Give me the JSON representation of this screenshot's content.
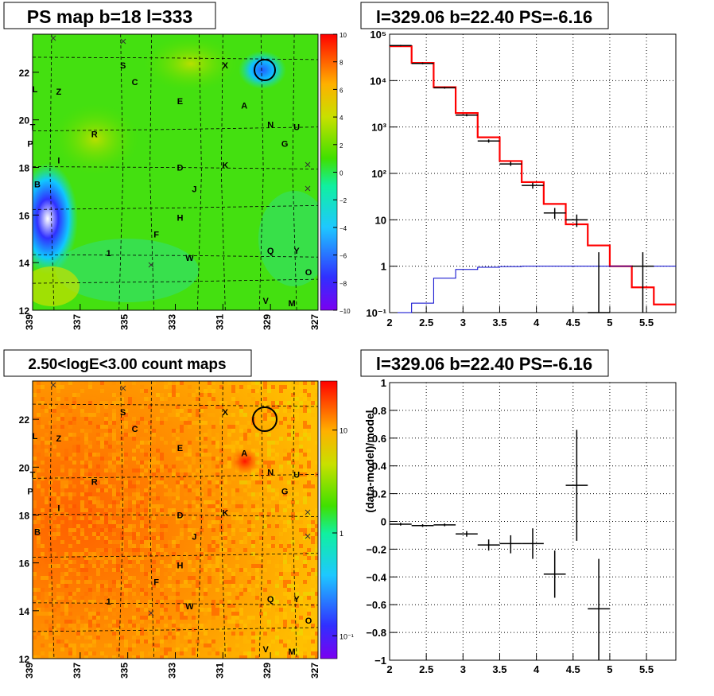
{
  "chart_data": [
    {
      "type": "heatmap",
      "title": "PS map b=18 l=333",
      "xlim": [
        339,
        327
      ],
      "ylim": [
        12,
        23.6
      ],
      "x_ticks": [
        "339",
        "337",
        "335",
        "333",
        "331",
        "329",
        "327"
      ],
      "y_ticks": [
        "12",
        "14",
        "16",
        "18",
        "20",
        "22"
      ],
      "colorbar": {
        "scale": "linear",
        "min": -10,
        "max": 10,
        "ticks": [
          "10",
          "8",
          "6",
          "4",
          "2",
          "0",
          "−2",
          "−4",
          "−6",
          "−8",
          "−10"
        ]
      },
      "source_labels": [
        {
          "text": "S",
          "l": 335.2,
          "b": 22.3
        },
        {
          "text": "X",
          "l": 330.9,
          "b": 22.3
        },
        {
          "text": "C",
          "l": 334.7,
          "b": 21.6
        },
        {
          "text": "L",
          "l": 338.9,
          "b": 21.3
        },
        {
          "text": "Z",
          "l": 337.9,
          "b": 21.2
        },
        {
          "text": "E",
          "l": 332.8,
          "b": 20.8
        },
        {
          "text": "A",
          "l": 330.1,
          "b": 20.6
        },
        {
          "text": "T",
          "l": 339.0,
          "b": 19.7
        },
        {
          "text": "R",
          "l": 336.4,
          "b": 19.4
        },
        {
          "text": "N",
          "l": 329.0,
          "b": 19.8
        },
        {
          "text": "U",
          "l": 327.9,
          "b": 19.7
        },
        {
          "text": "G",
          "l": 328.4,
          "b": 19.0
        },
        {
          "text": "P",
          "l": 339.1,
          "b": 19.0
        },
        {
          "text": "I",
          "l": 337.9,
          "b": 18.3
        },
        {
          "text": "D",
          "l": 332.8,
          "b": 18.0
        },
        {
          "text": "K",
          "l": 330.9,
          "b": 18.1
        },
        {
          "text": "B",
          "l": 338.8,
          "b": 17.3
        },
        {
          "text": "J",
          "l": 332.2,
          "b": 17.1
        },
        {
          "text": "H",
          "l": 332.8,
          "b": 15.9
        },
        {
          "text": "F",
          "l": 333.8,
          "b": 15.2
        },
        {
          "text": "1",
          "l": 335.8,
          "b": 14.4
        },
        {
          "text": "W",
          "l": 332.4,
          "b": 14.2
        },
        {
          "text": "Q",
          "l": 329.0,
          "b": 14.5
        },
        {
          "text": "Y",
          "l": 327.9,
          "b": 14.5
        },
        {
          "text": "O",
          "l": 327.4,
          "b": 13.6
        },
        {
          "text": "V",
          "l": 329.2,
          "b": 12.4
        },
        {
          "text": "M",
          "l": 328.1,
          "b": 12.3
        }
      ]
    },
    {
      "type": "line",
      "title": "l=329.06 b=22.40 PS=-6.16",
      "xlim": [
        2,
        5.9
      ],
      "ylim": [
        0.1,
        100000
      ],
      "y_scale": "log",
      "x_ticks": [
        "2",
        "2.5",
        "3",
        "3.5",
        "4",
        "4.5",
        "5",
        "5.5"
      ],
      "y_ticks": [
        "10⁻¹",
        "1",
        "10",
        "10²",
        "10³",
        "10⁴",
        "10⁵"
      ],
      "grid": true,
      "bin_edges": [
        2.0,
        2.3,
        2.6,
        2.9,
        3.2,
        3.5,
        3.8,
        4.1,
        4.4,
        4.7,
        5.0,
        5.3,
        5.6,
        5.9
      ],
      "series": [
        {
          "color": "#ff0000",
          "style": "step",
          "values": [
            55000,
            24000,
            7200,
            2000,
            600,
            185,
            65,
            22,
            8,
            2.8,
            1.0,
            0.35,
            0.15
          ]
        },
        {
          "color": "#0000cc",
          "style": "step",
          "values": [
            0.1,
            0.16,
            0.55,
            0.85,
            0.95,
            0.98,
            1.0,
            1.0,
            1.0,
            1.0,
            1.0,
            1.0,
            1.0
          ]
        },
        {
          "color": "#000000",
          "style": "errorbar",
          "points": [
            {
              "x": 2.15,
              "y": 57000,
              "lo": 55000,
              "hi": 59000
            },
            {
              "x": 2.45,
              "y": 23500,
              "lo": 22500,
              "hi": 24500
            },
            {
              "x": 2.75,
              "y": 7000,
              "lo": 6700,
              "hi": 7300
            },
            {
              "x": 3.05,
              "y": 1800,
              "lo": 1700,
              "hi": 1900
            },
            {
              "x": 3.35,
              "y": 500,
              "lo": 460,
              "hi": 540
            },
            {
              "x": 3.65,
              "y": 160,
              "lo": 145,
              "hi": 178
            },
            {
              "x": 3.95,
              "y": 55,
              "lo": 47,
              "hi": 63
            },
            {
              "x": 4.25,
              "y": 14,
              "lo": 10.5,
              "hi": 18
            },
            {
              "x": 4.55,
              "y": 10,
              "lo": 7,
              "hi": 13
            },
            {
              "x": 4.85,
              "y": 0.1,
              "lo": 0.1,
              "hi": 2.0
            },
            {
              "x": 5.45,
              "y": 1.0,
              "lo": 0.1,
              "hi": 2.0
            }
          ]
        }
      ]
    },
    {
      "type": "heatmap",
      "title": "2.50<logE<3.00 count maps",
      "xlim": [
        339,
        327
      ],
      "ylim": [
        12,
        23.6
      ],
      "x_ticks": [
        "339",
        "337",
        "335",
        "333",
        "331",
        "329",
        "327"
      ],
      "y_ticks": [
        "12",
        "14",
        "16",
        "18",
        "20",
        "22"
      ],
      "colorbar": {
        "scale": "log",
        "min": 0.06,
        "max": 30,
        "ticks": [
          "10",
          "1",
          "10⁻¹"
        ]
      }
    },
    {
      "type": "scatter",
      "title": "l=329.06 b=22.40 PS=-6.16",
      "ylabel": "(data-model)/model",
      "xlim": [
        2,
        5.9
      ],
      "ylim": [
        -1,
        1
      ],
      "x_ticks": [
        "2",
        "2.5",
        "3",
        "3.5",
        "4",
        "4.5",
        "5",
        "5.5"
      ],
      "y_ticks": [
        "1",
        "0.8",
        "0.6",
        "0.4",
        "0.2",
        "0",
        "−0.2",
        "−0.4",
        "−0.6",
        "−0.8",
        "−1"
      ],
      "grid": true,
      "points": [
        {
          "x": 2.15,
          "y": -0.02,
          "lo": -0.03,
          "hi": -0.01
        },
        {
          "x": 2.45,
          "y": -0.03,
          "lo": -0.04,
          "hi": -0.02
        },
        {
          "x": 2.75,
          "y": -0.025,
          "lo": -0.035,
          "hi": -0.015
        },
        {
          "x": 3.05,
          "y": -0.09,
          "lo": -0.11,
          "hi": -0.07
        },
        {
          "x": 3.35,
          "y": -0.17,
          "lo": -0.21,
          "hi": -0.13
        },
        {
          "x": 3.65,
          "y": -0.16,
          "lo": -0.23,
          "hi": -0.1
        },
        {
          "x": 3.95,
          "y": -0.16,
          "lo": -0.27,
          "hi": -0.05
        },
        {
          "x": 4.25,
          "y": -0.38,
          "lo": -0.55,
          "hi": -0.21
        },
        {
          "x": 4.55,
          "y": 0.26,
          "lo": -0.14,
          "hi": 0.66
        },
        {
          "x": 4.85,
          "y": -0.63,
          "lo": -1.0,
          "hi": -0.27
        }
      ]
    }
  ]
}
